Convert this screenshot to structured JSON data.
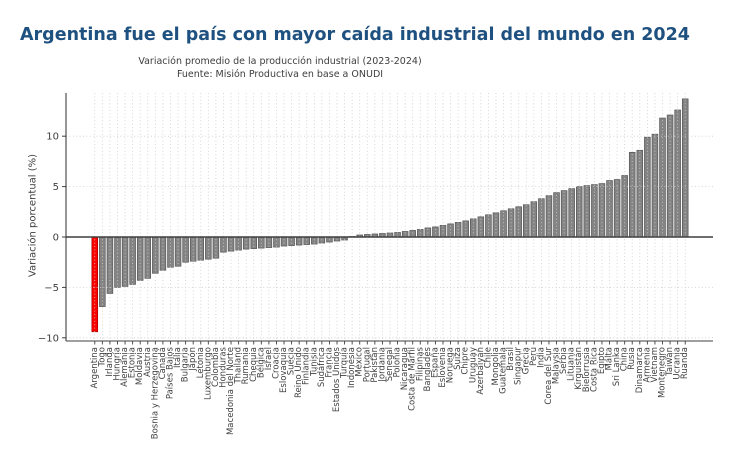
{
  "header": {
    "title": "Argentina fue el país con mayor caída industrial del mundo en 2024",
    "subtitle_line1": "Variación promedio de la producción industrial (2023-2024)",
    "subtitle_line2": "Fuente: Misión Productiva en base a ONUDI"
  },
  "colors": {
    "title": "#1f5180",
    "bar": "#848484",
    "bar_edge": "#565656",
    "highlight": "#ff0000",
    "highlight_edge": "#a00000",
    "axis": "#3f3f3f",
    "grid": "#cccccc",
    "tick_label": "#3f3f3f"
  },
  "chart_data": {
    "type": "bar",
    "title": "Variación promedio de la producción industrial (2023-2024)",
    "source": "Fuente: Misión Productiva en base a ONUDI",
    "xlabel": "",
    "ylabel": "Variación porcentual (%)",
    "ylim": [
      -10.4,
      14.3
    ],
    "y_ticks": [
      10,
      5,
      0,
      -5,
      -10
    ],
    "grid": true,
    "legend": false,
    "highlight_category": "Argentina",
    "categories": [
      "Argentina",
      "Togo",
      "Irlanda",
      "Hungría",
      "Alemania",
      "Estonia",
      "Moldavia",
      "Austria",
      "Bosnia y Herzegovina",
      "Canadá",
      "Países Bajos",
      "Italia",
      "Bulgaria",
      "Japón",
      "Letonia",
      "Luxemburgo",
      "Colombia",
      "Honduras",
      "Macedonia del Norte",
      "Thailand",
      "Rumania",
      "Chequia",
      "Bélgica",
      "Israel",
      "Croacia",
      "Eslovaquia",
      "Suecia",
      "Reino Unido",
      "Finlandia",
      "Tunisia",
      "Sudáfrica",
      "Francia",
      "Estados Unidos",
      "Turquía",
      "Indonesia",
      "México",
      "Portugal",
      "Pakistán",
      "Jordania",
      "Senegal",
      "Polonia",
      "Nicaragua",
      "Costa de Marfil",
      "Filipinas",
      "Bangladés",
      "España",
      "Eslovenia",
      "Noruega",
      "Suiza",
      "Chipre",
      "Uruguay",
      "Azerbaiyán",
      "Chile",
      "Mongolia",
      "Guatemala",
      "Brasil",
      "Singapur",
      "Grecia",
      "Perú",
      "India",
      "Corea del Sur",
      "Malaysia",
      "Serbia",
      "Lituania",
      "Kirguistán",
      "Bielorrusia",
      "Costa Rica",
      "Egipto",
      "Malta",
      "Sri Lanka",
      "China",
      "Rusia",
      "Dinamarca",
      "Armenia",
      "Vietnam",
      "Montenegro",
      "Taiwán",
      "Ucrania",
      "Ruanda"
    ],
    "values": [
      -9.4,
      -6.9,
      -5.6,
      -5.0,
      -4.9,
      -4.7,
      -4.3,
      -4.1,
      -3.6,
      -3.3,
      -3.0,
      -2.9,
      -2.5,
      -2.4,
      -2.3,
      -2.2,
      -2.1,
      -1.5,
      -1.4,
      -1.3,
      -1.2,
      -1.15,
      -1.1,
      -1.05,
      -1.0,
      -0.9,
      -0.85,
      -0.8,
      -0.75,
      -0.7,
      -0.6,
      -0.5,
      -0.4,
      -0.3,
      0.05,
      0.2,
      0.25,
      0.3,
      0.35,
      0.4,
      0.45,
      0.55,
      0.65,
      0.75,
      0.9,
      1.0,
      1.15,
      1.3,
      1.45,
      1.6,
      1.8,
      2.0,
      2.2,
      2.4,
      2.6,
      2.8,
      3.0,
      3.2,
      3.5,
      3.8,
      4.1,
      4.4,
      4.6,
      4.8,
      5.0,
      5.1,
      5.2,
      5.3,
      5.6,
      5.7,
      6.1,
      8.4,
      8.6,
      9.9,
      10.2,
      11.8,
      12.1,
      12.6,
      13.7
    ]
  }
}
